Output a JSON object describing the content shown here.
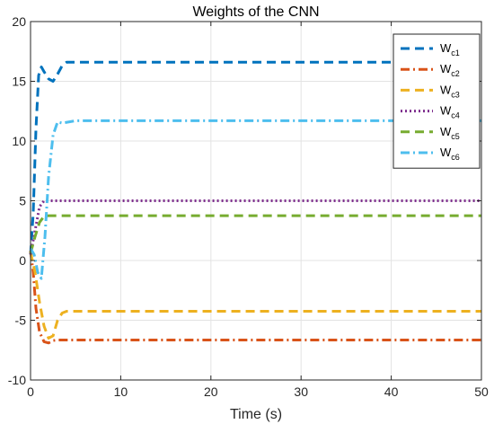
{
  "chart_data": {
    "type": "line",
    "title": "Weights of the CNN",
    "xlabel": "Time (s)",
    "ylabel": "",
    "xlim": [
      0,
      50
    ],
    "ylim": [
      -10,
      20
    ],
    "xticks": [
      0,
      10,
      20,
      30,
      40,
      50
    ],
    "yticks": [
      -10,
      -5,
      0,
      5,
      10,
      15,
      20
    ],
    "grid": true,
    "legend_position": "top-right",
    "series": [
      {
        "name": "W",
        "sub": "c1",
        "color": "#0072BD",
        "dash": "dashed",
        "points": [
          [
            0,
            0.5
          ],
          [
            0.3,
            4
          ],
          [
            0.6,
            11
          ],
          [
            0.9,
            15.5
          ],
          [
            1.2,
            16.2
          ],
          [
            1.5,
            15.8
          ],
          [
            2.0,
            15.2
          ],
          [
            2.5,
            15.0
          ],
          [
            3.0,
            15.6
          ],
          [
            3.5,
            16.3
          ],
          [
            4.0,
            16.6
          ],
          [
            50,
            16.6
          ]
        ]
      },
      {
        "name": "W",
        "sub": "c2",
        "color": "#D95319",
        "dash": "dashdot",
        "points": [
          [
            0,
            0.8
          ],
          [
            0.3,
            -1
          ],
          [
            0.6,
            -4
          ],
          [
            1.0,
            -6
          ],
          [
            1.5,
            -6.8
          ],
          [
            2.0,
            -6.9
          ],
          [
            2.5,
            -6.7
          ],
          [
            3.0,
            -6.65
          ],
          [
            50,
            -6.65
          ]
        ]
      },
      {
        "name": "W",
        "sub": "c3",
        "color": "#EDB120",
        "dash": "dashed",
        "points": [
          [
            0,
            0.7
          ],
          [
            0.5,
            -1
          ],
          [
            1.0,
            -3.5
          ],
          [
            1.5,
            -5.5
          ],
          [
            2.0,
            -6.5
          ],
          [
            2.5,
            -6.3
          ],
          [
            3.0,
            -5.0
          ],
          [
            3.5,
            -4.4
          ],
          [
            4.0,
            -4.25
          ],
          [
            50,
            -4.25
          ]
        ]
      },
      {
        "name": "W",
        "sub": "c4",
        "color": "#7E2F8E",
        "dash": "dotted",
        "points": [
          [
            0,
            0.5
          ],
          [
            0.5,
            2.5
          ],
          [
            1.0,
            4.5
          ],
          [
            1.5,
            5.0
          ],
          [
            50,
            5.0
          ]
        ]
      },
      {
        "name": "W",
        "sub": "c5",
        "color": "#77AC30",
        "dash": "dashed",
        "points": [
          [
            0,
            0.6
          ],
          [
            0.5,
            2.0
          ],
          [
            1.0,
            3.2
          ],
          [
            1.5,
            3.7
          ],
          [
            2.0,
            3.75
          ],
          [
            50,
            3.75
          ]
        ]
      },
      {
        "name": "W",
        "sub": "c6",
        "color": "#4DBEEE",
        "dash": "dashdot",
        "points": [
          [
            0,
            1.0
          ],
          [
            0.4,
            0.5
          ],
          [
            0.8,
            -1.0
          ],
          [
            1.2,
            -1.5
          ],
          [
            1.6,
            2.0
          ],
          [
            2.0,
            7.0
          ],
          [
            2.5,
            10.5
          ],
          [
            3.0,
            11.6
          ],
          [
            3.5,
            11.5
          ],
          [
            5.0,
            11.7
          ],
          [
            50,
            11.7
          ]
        ]
      }
    ]
  }
}
